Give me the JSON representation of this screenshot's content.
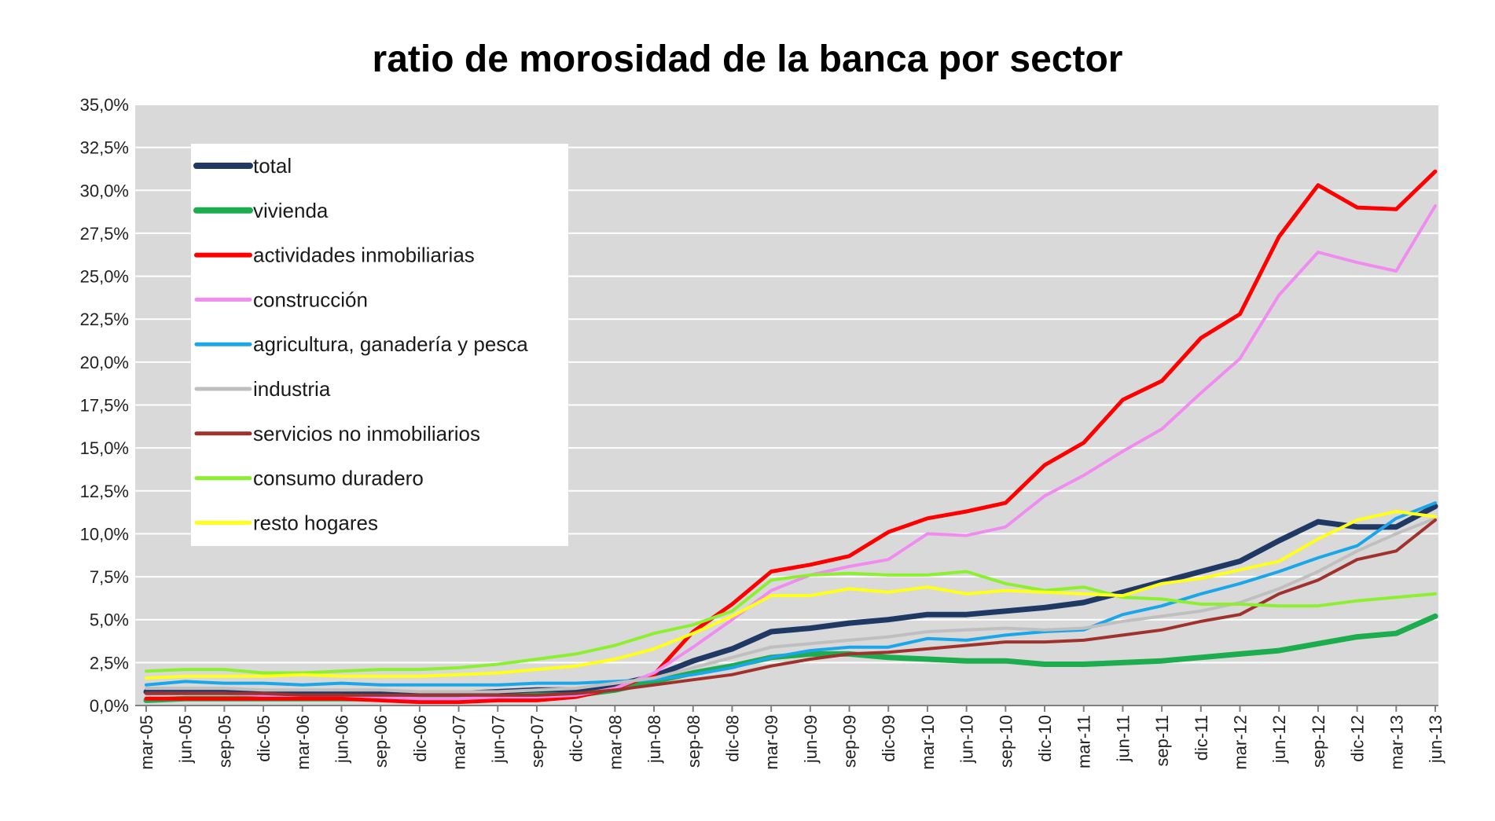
{
  "chart_data": {
    "type": "line",
    "title": "ratio de morosidad de la banca por sector",
    "xlabel": "",
    "ylabel": "",
    "ylim": [
      0,
      35
    ],
    "y_ticks": [
      "0,0%",
      "2,5%",
      "5,0%",
      "7,5%",
      "10,0%",
      "12,5%",
      "15,0%",
      "17,5%",
      "20,0%",
      "22,5%",
      "25,0%",
      "27,5%",
      "30,0%",
      "32,5%",
      "35,0%"
    ],
    "grid": true,
    "legend_position": "top-left",
    "x": [
      "mar-05",
      "jun-05",
      "sep-05",
      "dic-05",
      "mar-06",
      "jun-06",
      "sep-06",
      "dic-06",
      "mar-07",
      "jun-07",
      "sep-07",
      "dic-07",
      "mar-08",
      "jun-08",
      "sep-08",
      "dic-08",
      "mar-09",
      "jun-09",
      "sep-09",
      "dic-09",
      "mar-10",
      "jun-10",
      "sep-10",
      "dic-10",
      "mar-11",
      "jun-11",
      "sep-11",
      "dic-11",
      "mar-12",
      "jun-12",
      "sep-12",
      "dic-12",
      "mar-13",
      "jun-13"
    ],
    "series": [
      {
        "name": "total",
        "color": "#1f3864",
        "width": 7,
        "values": [
          0.8,
          0.8,
          0.8,
          0.7,
          0.7,
          0.7,
          0.7,
          0.7,
          0.7,
          0.8,
          0.9,
          0.9,
          1.2,
          1.7,
          2.6,
          3.3,
          4.3,
          4.5,
          4.8,
          5.0,
          5.3,
          5.3,
          5.5,
          5.7,
          6.0,
          6.6,
          7.2,
          7.8,
          8.4,
          9.6,
          10.7,
          10.4,
          10.4,
          11.6
        ]
      },
      {
        "name": "vivienda",
        "color": "#1ead4e",
        "width": 7,
        "values": [
          0.3,
          0.4,
          0.4,
          0.4,
          0.4,
          0.4,
          0.4,
          0.4,
          0.5,
          0.5,
          0.6,
          0.6,
          0.9,
          1.4,
          1.9,
          2.3,
          2.8,
          3.0,
          3.0,
          2.8,
          2.7,
          2.6,
          2.6,
          2.4,
          2.4,
          2.5,
          2.6,
          2.8,
          3.0,
          3.2,
          3.6,
          4.0,
          4.2,
          5.2
        ]
      },
      {
        "name": "actividades inmobiliarias",
        "color": "#ff0000",
        "width": 5,
        "values": [
          0.4,
          0.4,
          0.4,
          0.4,
          0.4,
          0.4,
          0.3,
          0.2,
          0.2,
          0.3,
          0.3,
          0.5,
          1.0,
          1.8,
          4.3,
          5.9,
          7.8,
          8.2,
          8.7,
          10.1,
          10.9,
          11.3,
          11.8,
          14.0,
          15.3,
          17.8,
          18.9,
          21.4,
          22.8,
          27.3,
          30.3,
          29.0,
          28.9,
          31.1
        ]
      },
      {
        "name": "construcción",
        "color": "#f08cf0",
        "width": 4,
        "values": [
          0.7,
          0.7,
          0.7,
          0.6,
          0.6,
          0.6,
          0.5,
          0.4,
          0.4,
          0.5,
          0.5,
          0.6,
          1.0,
          1.9,
          3.4,
          5.0,
          6.7,
          7.6,
          8.1,
          8.5,
          10.0,
          9.9,
          10.4,
          12.2,
          13.4,
          14.8,
          16.1,
          18.2,
          20.2,
          23.9,
          26.4,
          25.8,
          25.3,
          29.1
        ]
      },
      {
        "name": "agricultura, ganadería y pesca",
        "color": "#1aa6e8",
        "width": 4,
        "values": [
          1.2,
          1.4,
          1.3,
          1.3,
          1.2,
          1.3,
          1.2,
          1.2,
          1.2,
          1.2,
          1.3,
          1.3,
          1.4,
          1.5,
          1.8,
          2.2,
          2.8,
          3.2,
          3.4,
          3.4,
          3.9,
          3.8,
          4.1,
          4.3,
          4.4,
          5.3,
          5.8,
          6.5,
          7.1,
          7.8,
          8.6,
          9.3,
          10.9,
          11.8
        ]
      },
      {
        "name": "industria",
        "color": "#bfbfbf",
        "width": 4,
        "values": [
          1.0,
          1.0,
          1.0,
          0.9,
          0.9,
          0.9,
          0.9,
          0.8,
          0.8,
          0.8,
          0.9,
          1.0,
          1.3,
          1.6,
          2.2,
          2.8,
          3.4,
          3.6,
          3.8,
          4.0,
          4.3,
          4.4,
          4.5,
          4.4,
          4.5,
          4.9,
          5.2,
          5.5,
          6.0,
          6.8,
          7.8,
          9.0,
          10.0,
          10.9
        ]
      },
      {
        "name": "servicios no inmobiliarios",
        "color": "#a0322e",
        "width": 4,
        "values": [
          0.7,
          0.7,
          0.7,
          0.7,
          0.6,
          0.6,
          0.6,
          0.6,
          0.6,
          0.6,
          0.6,
          0.7,
          0.9,
          1.2,
          1.5,
          1.8,
          2.3,
          2.7,
          3.0,
          3.1,
          3.3,
          3.5,
          3.7,
          3.7,
          3.8,
          4.1,
          4.4,
          4.9,
          5.3,
          6.5,
          7.3,
          8.5,
          9.0,
          10.8
        ]
      },
      {
        "name": "consumo duradero",
        "color": "#8cf030",
        "width": 4,
        "values": [
          2.0,
          2.1,
          2.1,
          1.9,
          1.9,
          2.0,
          2.1,
          2.1,
          2.2,
          2.4,
          2.7,
          3.0,
          3.5,
          4.2,
          4.7,
          5.5,
          7.3,
          7.6,
          7.7,
          7.6,
          7.6,
          7.8,
          7.1,
          6.7,
          6.9,
          6.3,
          6.2,
          5.9,
          5.9,
          5.8,
          5.8,
          6.1,
          6.3,
          6.5
        ]
      },
      {
        "name": "resto hogares",
        "color": "#ffff1a",
        "width": 4,
        "values": [
          1.6,
          1.7,
          1.7,
          1.7,
          1.8,
          1.7,
          1.7,
          1.7,
          1.8,
          1.9,
          2.1,
          2.3,
          2.7,
          3.3,
          4.2,
          5.2,
          6.4,
          6.4,
          6.8,
          6.6,
          6.9,
          6.5,
          6.7,
          6.6,
          6.5,
          6.4,
          7.1,
          7.4,
          7.9,
          8.4,
          9.7,
          10.8,
          11.3,
          11.0
        ]
      }
    ]
  }
}
